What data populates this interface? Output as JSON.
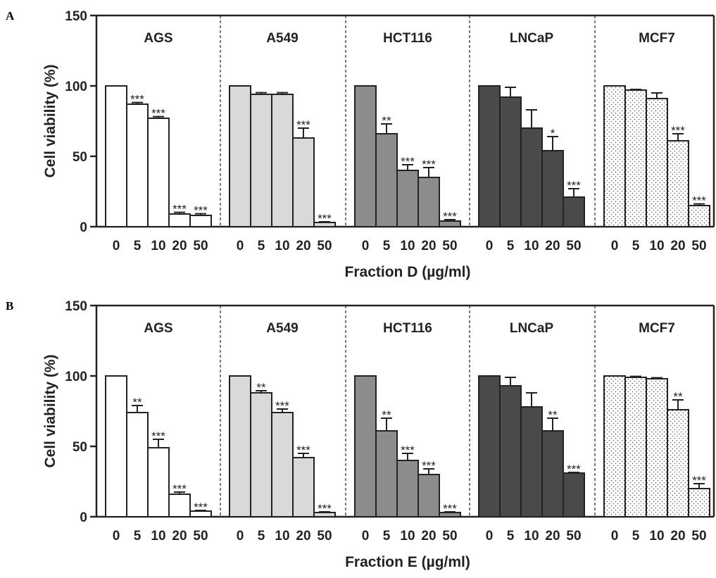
{
  "chart_data": [
    {
      "panel": "A",
      "type": "bar",
      "xlabel": "Fraction D (µg/ml)",
      "ylabel": "Cell viability  (%)",
      "ylim": [
        0,
        150
      ],
      "yticks": [
        0,
        50,
        100,
        150
      ],
      "categories": [
        "0",
        "5",
        "10",
        "20",
        "50"
      ],
      "series": [
        {
          "name": "AGS",
          "fill": "#ffffff",
          "pattern": "none",
          "values": [
            100,
            87,
            77,
            9,
            8
          ],
          "errors": [
            0,
            1.2,
            1.2,
            1.2,
            1.2
          ],
          "significance": [
            "",
            "***",
            "***",
            "***",
            "***"
          ]
        },
        {
          "name": "A549",
          "fill": "#d9d9d9",
          "pattern": "none",
          "values": [
            100,
            94,
            94,
            63,
            3
          ],
          "errors": [
            0,
            1.2,
            1.2,
            7,
            0.5
          ],
          "significance": [
            "",
            "",
            "",
            "***",
            "***"
          ]
        },
        {
          "name": "HCT116",
          "fill": "#8c8c8c",
          "pattern": "none",
          "values": [
            100,
            66,
            40,
            35,
            4
          ],
          "errors": [
            0,
            7,
            4,
            7,
            1
          ],
          "significance": [
            "",
            "**",
            "***",
            "***",
            "***"
          ]
        },
        {
          "name": "LNCaP",
          "fill": "#4a4a4a",
          "pattern": "none",
          "values": [
            100,
            92,
            70,
            54,
            21
          ],
          "errors": [
            0,
            7,
            13,
            10,
            6
          ],
          "significance": [
            "",
            "",
            "",
            "*",
            "***"
          ]
        },
        {
          "name": "MCF7",
          "fill": "#ffffff",
          "pattern": "dots",
          "values": [
            100,
            97,
            91,
            61,
            15
          ],
          "errors": [
            0,
            0.5,
            4,
            5,
            1.2
          ],
          "significance": [
            "",
            "",
            "",
            "***",
            "***"
          ]
        }
      ]
    },
    {
      "panel": "B",
      "type": "bar",
      "xlabel": "Fraction E (µg/ml)",
      "ylabel": "Cell viability  (%)",
      "ylim": [
        0,
        150
      ],
      "yticks": [
        0,
        50,
        100,
        150
      ],
      "categories": [
        "0",
        "5",
        "10",
        "20",
        "50"
      ],
      "series": [
        {
          "name": "AGS",
          "fill": "#ffffff",
          "pattern": "none",
          "values": [
            100,
            74,
            49,
            16,
            4
          ],
          "errors": [
            0,
            5,
            6,
            1.5,
            0.5
          ],
          "significance": [
            "",
            "**",
            "***",
            "***",
            "***"
          ]
        },
        {
          "name": "A549",
          "fill": "#d9d9d9",
          "pattern": "none",
          "values": [
            100,
            88,
            74,
            42,
            3
          ],
          "errors": [
            0,
            1.5,
            2.5,
            3,
            0.5
          ],
          "significance": [
            "",
            "**",
            "***",
            "***",
            "***"
          ]
        },
        {
          "name": "HCT116",
          "fill": "#8c8c8c",
          "pattern": "none",
          "values": [
            100,
            61,
            40,
            30,
            3
          ],
          "errors": [
            0,
            9,
            5,
            4,
            0.5
          ],
          "significance": [
            "",
            "**",
            "***",
            "***",
            "***"
          ]
        },
        {
          "name": "LNCaP",
          "fill": "#4a4a4a",
          "pattern": "none",
          "values": [
            100,
            93,
            78,
            61,
            31
          ],
          "errors": [
            0,
            6,
            10,
            9,
            0.5
          ],
          "significance": [
            "",
            "",
            "",
            "**",
            "***"
          ]
        },
        {
          "name": "MCF7",
          "fill": "#ffffff",
          "pattern": "dots",
          "values": [
            100,
            99,
            98,
            76,
            20
          ],
          "errors": [
            0,
            0.7,
            0.7,
            7,
            3.5
          ],
          "significance": [
            "",
            "",
            "",
            "**",
            "***"
          ]
        }
      ]
    }
  ]
}
